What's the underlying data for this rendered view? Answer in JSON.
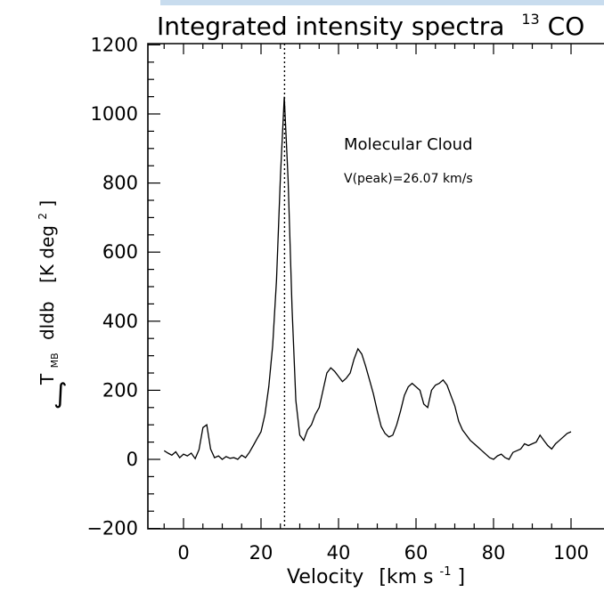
{
  "chart_data": {
    "type": "line",
    "title_main": "Integrated intensity spectra",
    "title_sup": "13",
    "title_tail": "CO",
    "xlabel_main": "Velocity",
    "xlabel_unit_left": "[km s",
    "xlabel_unit_sup": "-1",
    "xlabel_unit_right": "]",
    "ylabel_integral": "∫",
    "ylabel_T": "T",
    "ylabel_T_sub": "MB",
    "ylabel_rest": "dldb",
    "ylabel_unit_left": "[K deg",
    "ylabel_unit_sup": "2",
    "ylabel_unit_right": "]",
    "annotation_title": "Molecular Cloud",
    "annotation_peak": "V(peak)=26.07 km/s",
    "xlim": [
      -7,
      104
    ],
    "ylim": [
      -200,
      1200
    ],
    "xticks": [
      0,
      20,
      40,
      60,
      80,
      100
    ],
    "yticks": [
      -200,
      0,
      200,
      400,
      600,
      800,
      1000,
      1200
    ],
    "peak_velocity": 26.07,
    "series": [
      {
        "x": [
          -5,
          -4,
          -3,
          -2,
          -1,
          0,
          1,
          2,
          3,
          4,
          5,
          6,
          7,
          8,
          9,
          10,
          11,
          12,
          13,
          14,
          15,
          16,
          17,
          18,
          19,
          20,
          21,
          22,
          23,
          24,
          25,
          26,
          27,
          28,
          29,
          30,
          31,
          32,
          33,
          34,
          35,
          36,
          37,
          38,
          39,
          40,
          41,
          42,
          43,
          44,
          45,
          46,
          47,
          48,
          49,
          50,
          51,
          52,
          53,
          54,
          55,
          56,
          57,
          58,
          59,
          60,
          61,
          62,
          63,
          64,
          65,
          66,
          67,
          68,
          69,
          70,
          71,
          72,
          73,
          74,
          75,
          76,
          77,
          78,
          79,
          80,
          81,
          82,
          83,
          84,
          85,
          86,
          87,
          88,
          89,
          90,
          91,
          92,
          93,
          94,
          95,
          96,
          97,
          98,
          99,
          100
        ],
        "y": [
          25,
          18,
          12,
          22,
          5,
          15,
          10,
          18,
          2,
          28,
          92,
          100,
          30,
          5,
          10,
          0,
          8,
          3,
          5,
          0,
          12,
          5,
          20,
          40,
          60,
          80,
          130,
          210,
          330,
          520,
          820,
          1050,
          810,
          440,
          170,
          70,
          55,
          85,
          100,
          130,
          150,
          200,
          250,
          265,
          255,
          240,
          225,
          235,
          250,
          290,
          320,
          305,
          270,
          230,
          190,
          140,
          95,
          75,
          65,
          70,
          100,
          140,
          185,
          210,
          220,
          210,
          200,
          160,
          150,
          200,
          215,
          220,
          230,
          215,
          185,
          155,
          110,
          85,
          70,
          55,
          45,
          35,
          25,
          15,
          5,
          0,
          10,
          15,
          5,
          0,
          20,
          25,
          30,
          45,
          40,
          45,
          50,
          70,
          55,
          40,
          30,
          45,
          55,
          65,
          75,
          80
        ]
      }
    ]
  }
}
